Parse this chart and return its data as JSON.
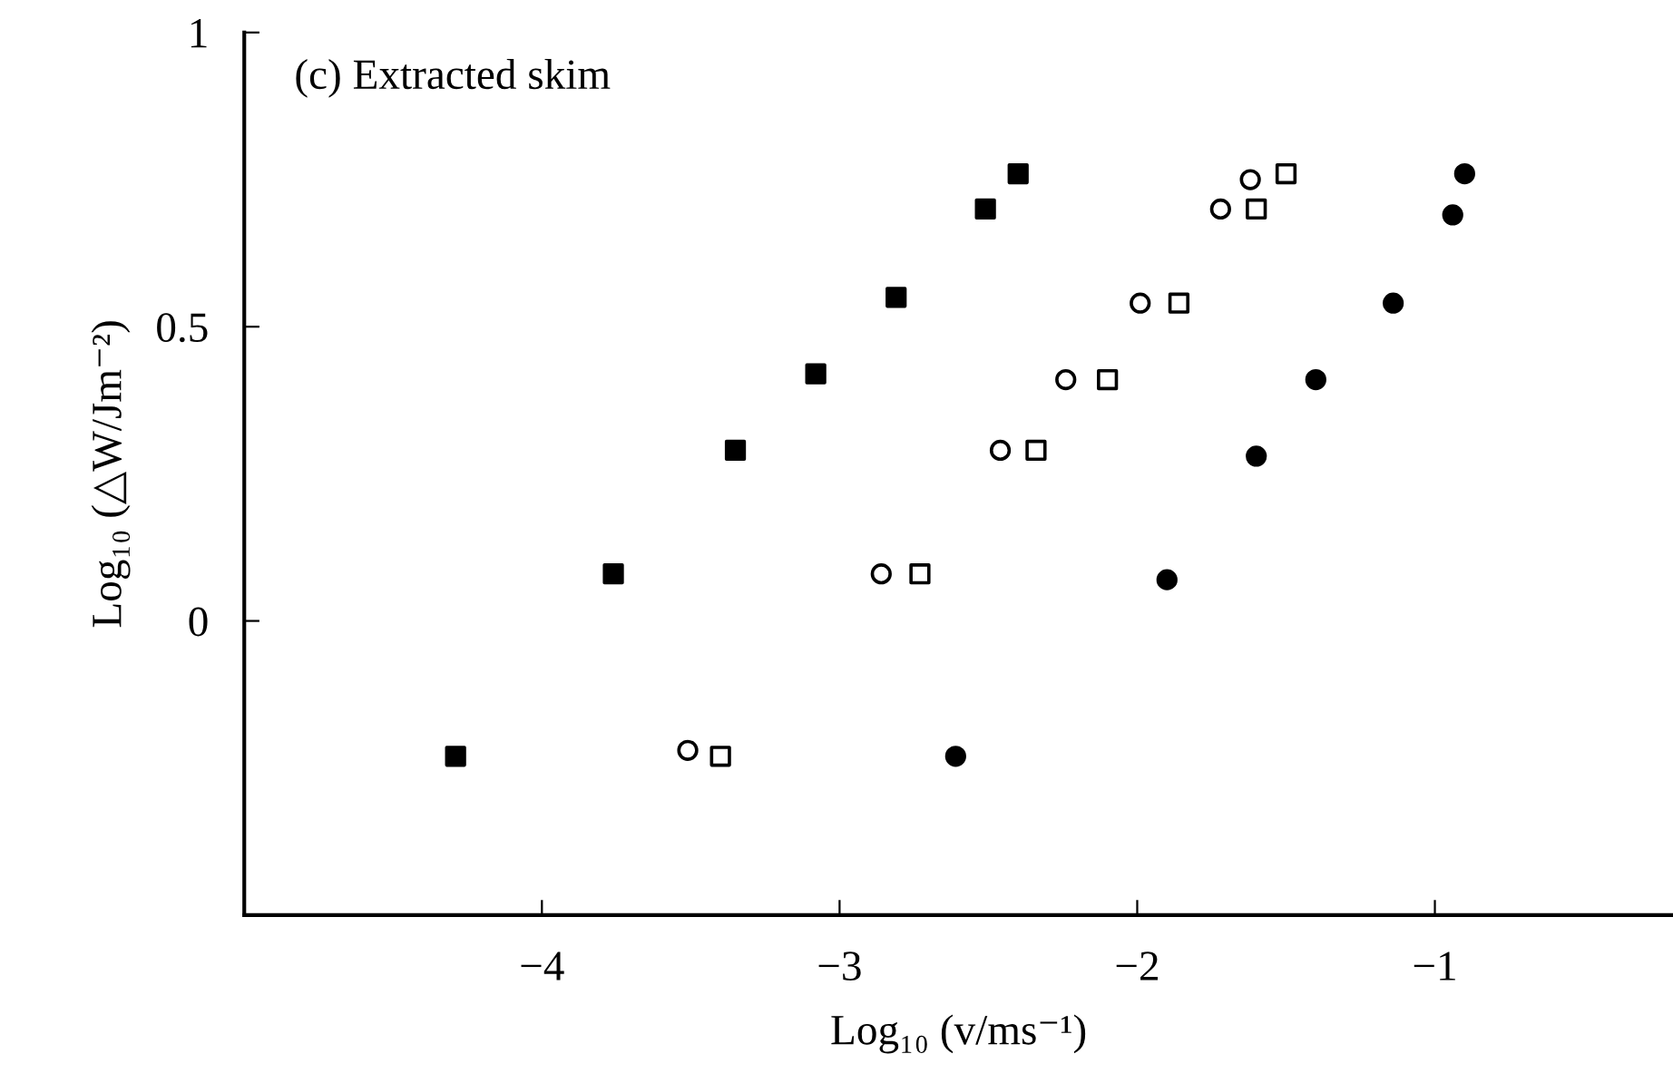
{
  "chart_data": {
    "type": "scatter",
    "xlabel": "Log₁₀ (v/ms⁻¹)",
    "ylabel": "Log₁₀ (△W/Jm⁻²)",
    "annotations": [
      "(c) Extracted skim"
    ],
    "xlim": [
      -5,
      -0.2
    ],
    "xticks": [
      {
        "value": -4,
        "label": "−4"
      },
      {
        "value": -3,
        "label": "−3"
      },
      {
        "value": -2,
        "label": "−2"
      },
      {
        "value": -1,
        "label": "−1"
      }
    ],
    "ylim": [
      -0.5,
      1
    ],
    "yticks": [
      0,
      0.5,
      1
    ],
    "grid": false,
    "legend": false,
    "series": [
      {
        "marker": "square",
        "color": "#000000",
        "x": [
          -4.29,
          -3.76,
          -3.35,
          -3.08,
          -2.81,
          -2.51,
          -2.4
        ],
        "values": [
          -0.23,
          0.08,
          0.29,
          0.42,
          0.55,
          0.7,
          0.76
        ]
      },
      {
        "marker": "circle",
        "color": "#ffffff",
        "x": [
          -3.51,
          -2.86,
          -2.46,
          -2.24,
          -1.99,
          -1.72,
          -1.62
        ],
        "values": [
          -0.22,
          0.08,
          0.29,
          0.41,
          0.54,
          0.7,
          0.75
        ]
      },
      {
        "marker": "square",
        "color": "#ffffff",
        "x": [
          -3.4,
          -2.73,
          -2.34,
          -2.1,
          -1.86,
          -1.6,
          -1.5
        ],
        "values": [
          -0.23,
          0.08,
          0.29,
          0.41,
          0.54,
          0.7,
          0.76
        ]
      },
      {
        "marker": "circle",
        "color": "#000000",
        "x": [
          -2.61,
          -1.9,
          -1.6,
          -1.4,
          -1.14,
          -0.94,
          -0.9
        ],
        "values": [
          -0.23,
          0.07,
          0.28,
          0.41,
          0.54,
          0.69,
          0.76
        ]
      }
    ]
  }
}
